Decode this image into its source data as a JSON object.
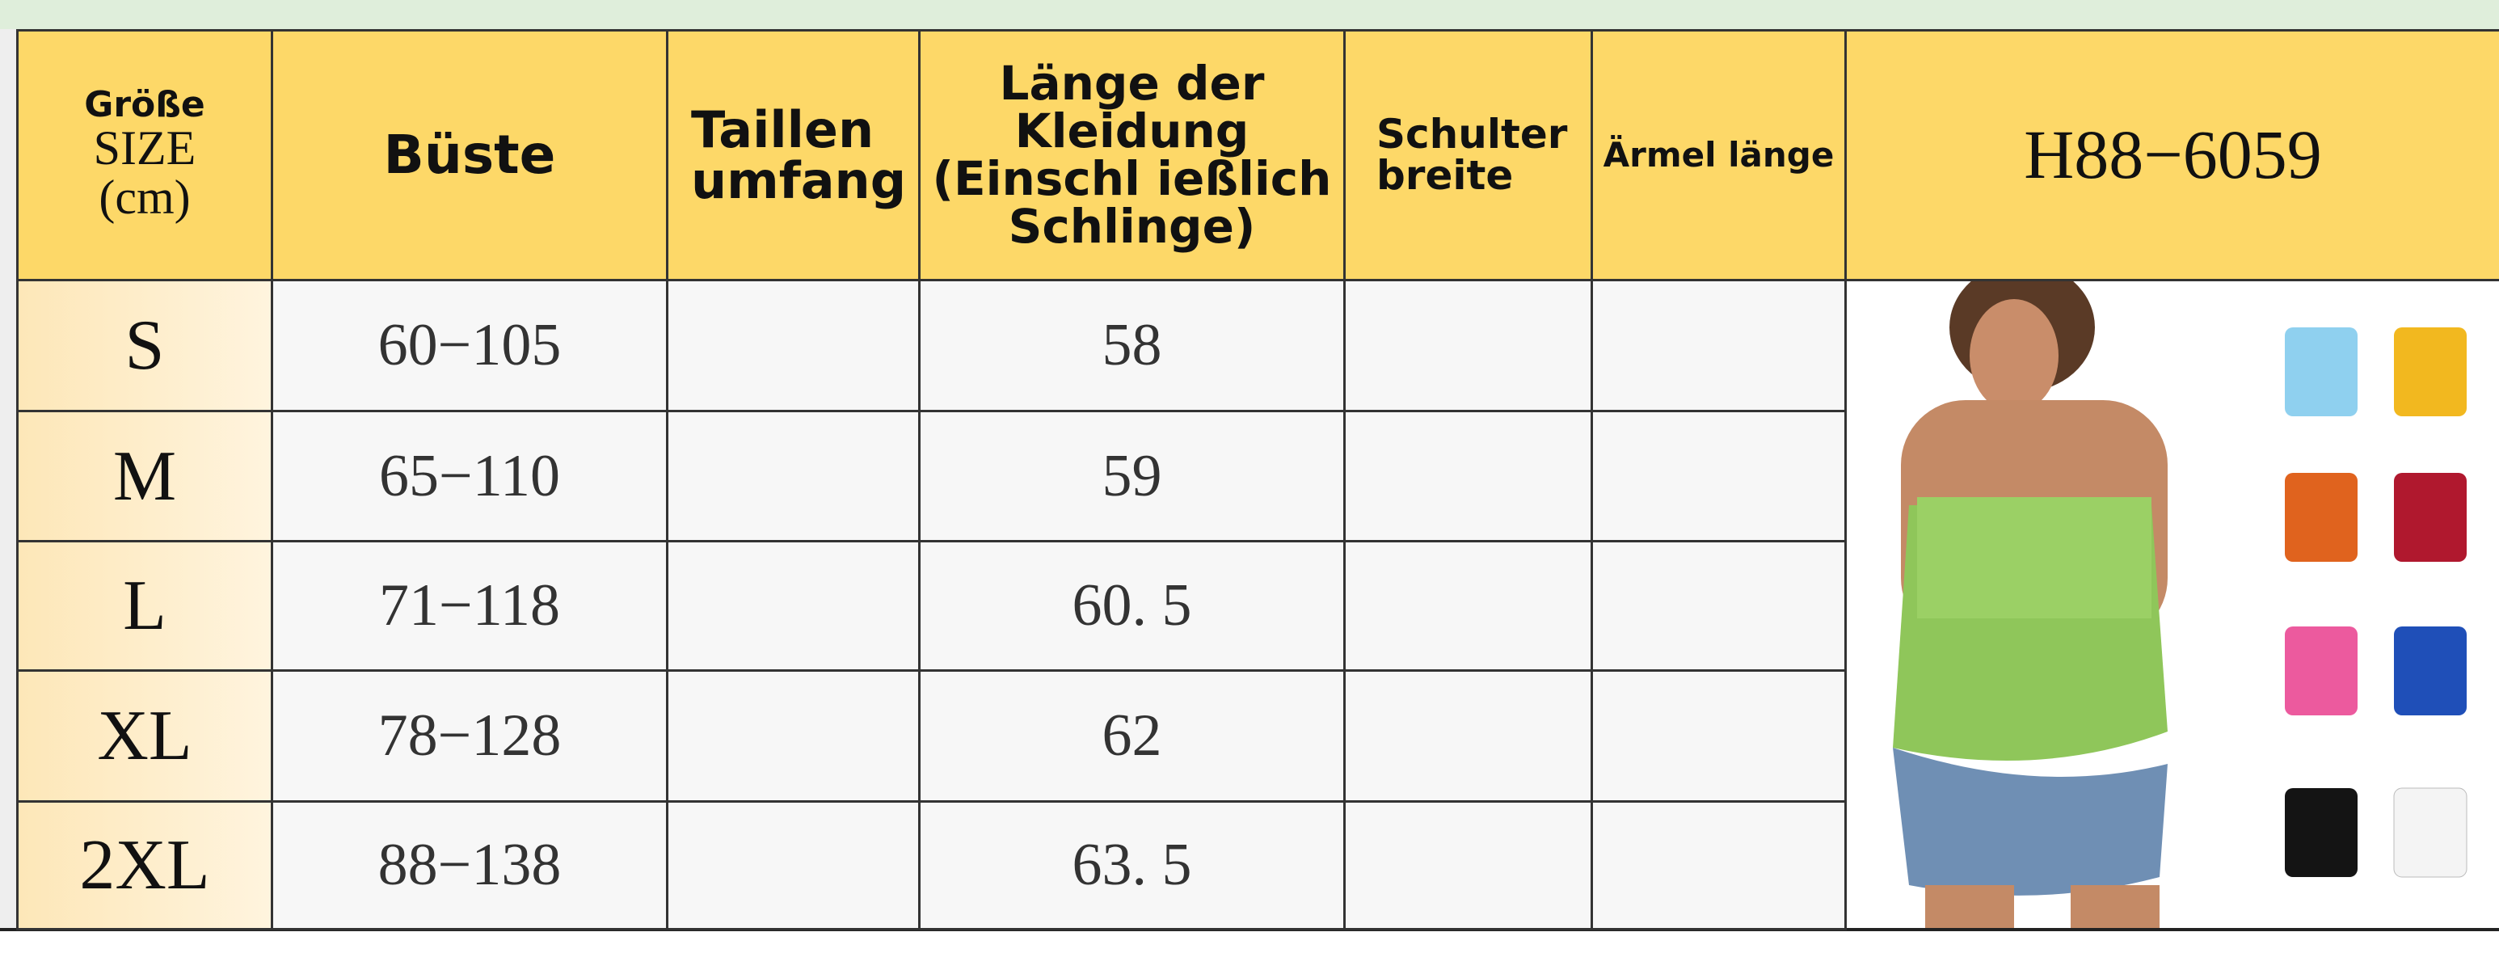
{
  "header": {
    "size_cell": [
      "Größe",
      "SIZE",
      "(cm)"
    ],
    "bust": "Büste",
    "waist": [
      "Taillen",
      "umfang"
    ],
    "length": [
      "Länge der",
      "Kleidung",
      "(Einschl ießlich",
      "Schlinge)"
    ],
    "shoulder": [
      "Schulter",
      "breite"
    ],
    "sleeve": "Ärmel länge",
    "model": "H88−6059"
  },
  "table": {
    "rows": [
      {
        "size": "S",
        "bust": "60−105",
        "length": "58"
      },
      {
        "size": "M",
        "bust": "65−110",
        "length": "59"
      },
      {
        "size": "L",
        "bust": "71−118",
        "length": "60. 5"
      },
      {
        "size": "XL",
        "bust": "78−128",
        "length": "62"
      },
      {
        "size": "2XL",
        "bust": "88−138",
        "length": "63. 5"
      }
    ]
  }
}
